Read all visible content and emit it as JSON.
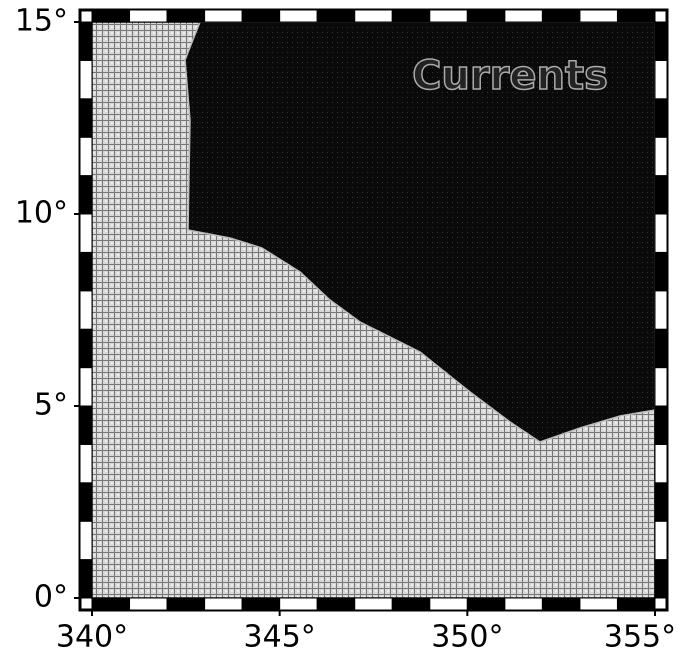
{
  "chart_data": {
    "type": "map",
    "title": "Currents",
    "xlim": [
      340,
      355
    ],
    "ylim": [
      0,
      15
    ],
    "xticks": [
      {
        "value": 340,
        "label": "340°"
      },
      {
        "value": 345,
        "label": "345°"
      },
      {
        "value": 350,
        "label": "350°"
      },
      {
        "value": 355,
        "label": "355°"
      }
    ],
    "yticks": [
      {
        "value": 0,
        "label": "0°"
      },
      {
        "value": 5,
        "label": "5°"
      },
      {
        "value": 10,
        "label": "10°"
      },
      {
        "value": 15,
        "label": "15°"
      }
    ]
  }
}
